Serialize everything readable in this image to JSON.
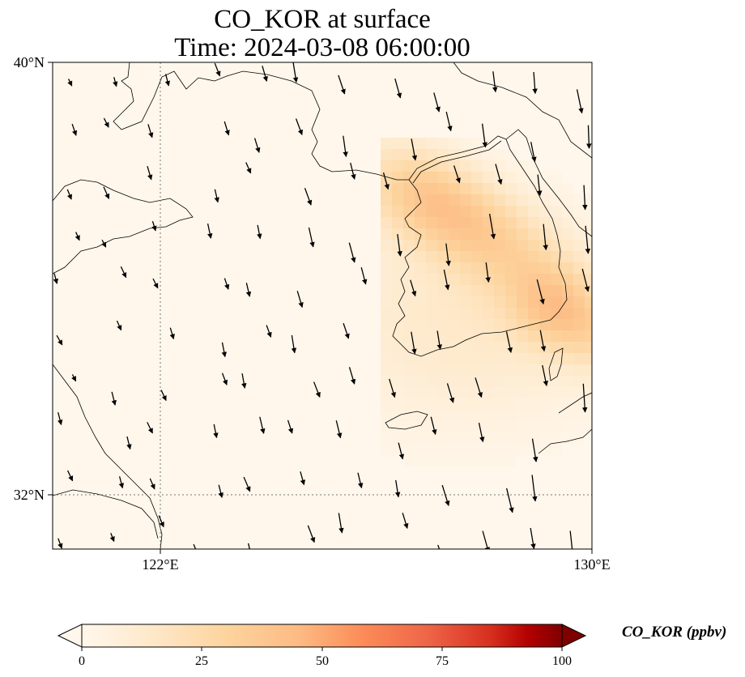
{
  "title": {
    "line1": "CO_KOR at surface",
    "line2": "Time: 2024-03-08 06:00:00"
  },
  "axes": {
    "lat_ticks": [
      {
        "value": 40,
        "label": "40°N"
      },
      {
        "value": 32,
        "label": "32°N"
      }
    ],
    "lon_ticks": [
      {
        "value": 122,
        "label": "122°E"
      },
      {
        "value": 130,
        "label": "130°E"
      }
    ],
    "lon_range": [
      120,
      130
    ],
    "lat_range": [
      31,
      40
    ],
    "gridlines": "dotted"
  },
  "colorbar": {
    "label": "CO_KOR (ppbv)",
    "colormap": "OrRd",
    "min": 0,
    "max": 100,
    "extend": "both",
    "ticks": [
      {
        "value": 0,
        "label": "0"
      },
      {
        "value": 25,
        "label": "25"
      },
      {
        "value": 50,
        "label": "50"
      },
      {
        "value": 75,
        "label": "75"
      },
      {
        "value": 100,
        "label": "100"
      }
    ]
  },
  "field": {
    "variable": "CO_KOR",
    "units": "ppbv",
    "peaks": [
      {
        "lon": 127.0,
        "lat": 37.5,
        "value": 38
      },
      {
        "lon": 129.3,
        "lat": 35.5,
        "value": 30
      }
    ]
  },
  "wind": {
    "prevailing": "northwesterly"
  }
}
